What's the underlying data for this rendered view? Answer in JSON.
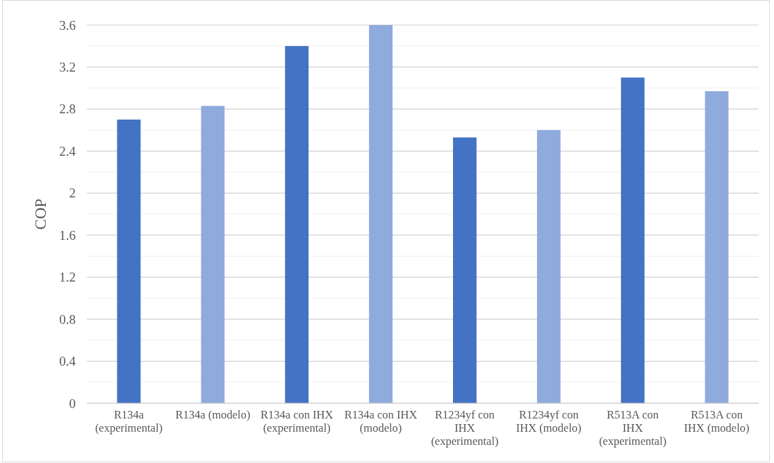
{
  "chart_data": {
    "type": "bar",
    "ylabel": "COP",
    "categories": [
      "R134a (experimental)",
      "R134a (modelo)",
      "R134a con IHX (experimental)",
      "R134a con IHX (modelo)",
      "R1234yf con IHX (experimental)",
      "R1234yf con IHX (modelo)",
      "R513A con IHX (experimental)",
      "R513A con IHX (modelo)"
    ],
    "values": [
      2.7,
      2.83,
      3.4,
      3.6,
      2.53,
      2.6,
      3.1,
      2.97
    ],
    "colors": [
      "#4472c4",
      "#8faadc",
      "#4472c4",
      "#8faadc",
      "#4472c4",
      "#8faadc",
      "#4472c4",
      "#8faadc"
    ],
    "ylim": [
      0,
      3.6
    ],
    "yticks": [
      0,
      0.4,
      0.8,
      1.2,
      1.6,
      2,
      2.4,
      2.8,
      3.2,
      3.6
    ],
    "grid": "y"
  }
}
